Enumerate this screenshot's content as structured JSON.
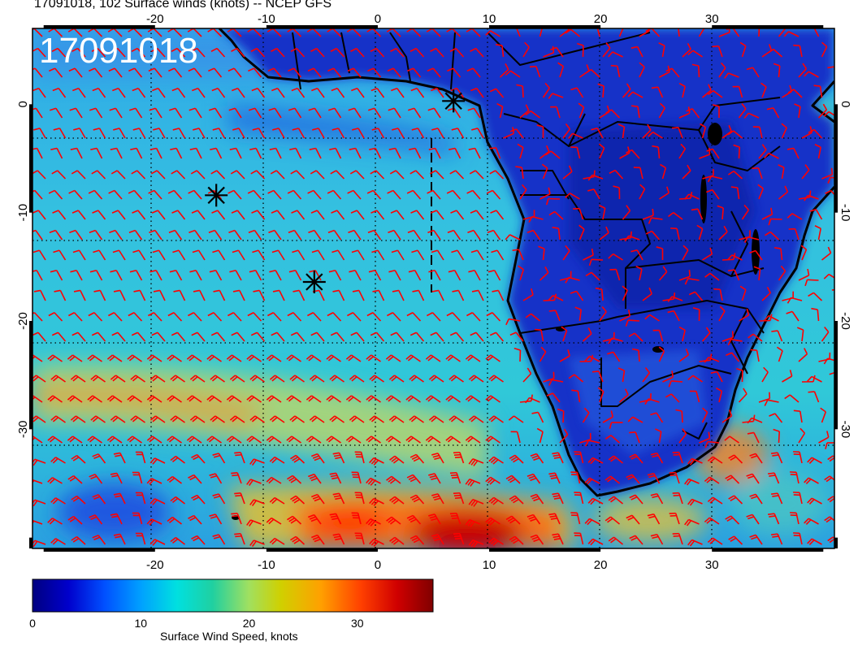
{
  "title": "17091018, 102 Surface winds (knots) -- NCEP GFS",
  "stamp": "17091018",
  "map": {
    "lon_range": [
      -31,
      41
    ],
    "lat_range": [
      -41,
      7
    ],
    "lon_ticks": [
      -20,
      -10,
      0,
      10,
      20,
      30
    ],
    "lat_ticks": [
      0,
      -10,
      -20,
      -30
    ],
    "barb_color": "#ff0000",
    "markers": [
      {
        "name": "marker-1",
        "lon": 6.8,
        "lat": 0.3
      },
      {
        "name": "marker-2",
        "lon": -14.5,
        "lat": -8.4
      },
      {
        "name": "marker-3",
        "lon": -5.7,
        "lat": -16.4
      }
    ]
  },
  "colorbar": {
    "label": "Surface Wind Speed, knots",
    "min": 0,
    "max": 37,
    "ticks": [
      0,
      10,
      20,
      30
    ],
    "colors": [
      "#000080",
      "#0000cc",
      "#0050ff",
      "#00a0ff",
      "#00e0e0",
      "#20d0a0",
      "#a0e060",
      "#d0d000",
      "#ffa000",
      "#ff4000",
      "#d00000",
      "#800000"
    ]
  }
}
